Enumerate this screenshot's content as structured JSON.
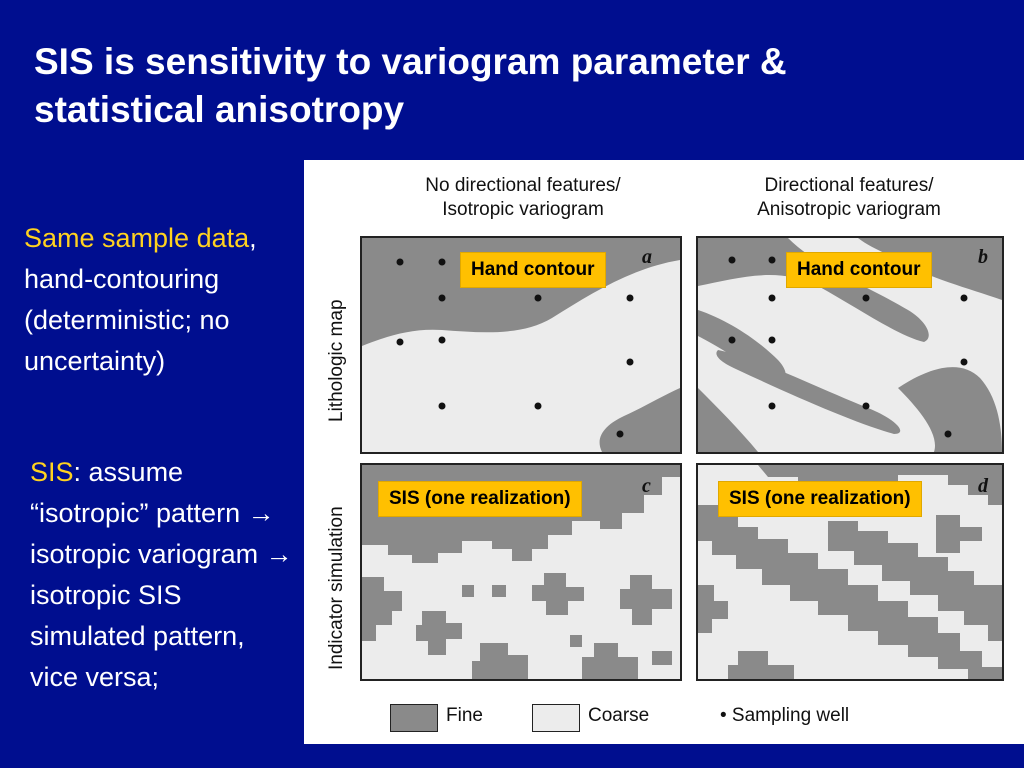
{
  "slide": {
    "title_line1": "SIS is sensitivity to variogram parameter &",
    "title_line2": "statistical anisotropy"
  },
  "left_text": {
    "block1_highlight": "Same sample data",
    "block1_rest": ", hand-contouring (deterministic; no uncertainty)",
    "block2_highlight": "SIS",
    "block2_rest": ": assume “isotropic” pattern → isotropic variogram → isotropic SIS simulated pattern, vice versa;"
  },
  "figure": {
    "col_left_line1": "No directional features/",
    "col_left_line2": "Isotropic variogram",
    "col_right_line1": "Directional features/",
    "col_right_line2": "Anisotropic variogram",
    "row_top_label": "Lithologic map",
    "row_bottom_label": "Indicator simulation",
    "panels": [
      {
        "letter": "a",
        "tag": "Hand contour"
      },
      {
        "letter": "b",
        "tag": "Hand contour"
      },
      {
        "letter": "c",
        "tag": "SIS (one realization)"
      },
      {
        "letter": "d",
        "tag": "SIS (one realization)"
      }
    ],
    "legend": {
      "fine": "Fine",
      "coarse": "Coarse",
      "well": "• Sampling well"
    },
    "colors": {
      "fine": "#8a8a8a",
      "coarse": "#ececec",
      "tag": "#ffc000"
    }
  }
}
